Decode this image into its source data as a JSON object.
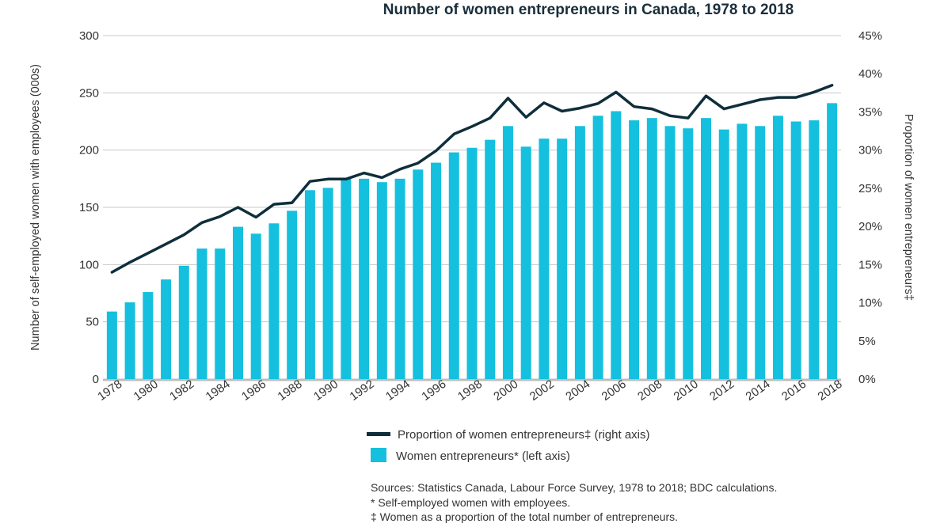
{
  "chart_data": {
    "type": "bar",
    "title": "Number of women entrepreneurs in Canada, 1978 to 2018",
    "ylabel": "Number of self-employed women with employees (000s)",
    "y2label": "Proportion of women entrepreneurs‡",
    "ylim": [
      0,
      300
    ],
    "y2lim": [
      0,
      45
    ],
    "yticks": [
      "0",
      "50",
      "100",
      "150",
      "200",
      "250",
      "300"
    ],
    "y2ticks": [
      "0%",
      "5%",
      "10%",
      "15%",
      "20%",
      "25%",
      "30%",
      "35%",
      "40%",
      "45%"
    ],
    "grid": true,
    "legend_position": "bottom",
    "categories": [
      "1978",
      "1979",
      "1980",
      "1981",
      "1982",
      "1983",
      "1984",
      "1985",
      "1986",
      "1987",
      "1988",
      "1989",
      "1990",
      "1991",
      "1992",
      "1993",
      "1994",
      "1995",
      "1996",
      "1997",
      "1998",
      "1999",
      "2000",
      "2001",
      "2002",
      "2003",
      "2004",
      "2005",
      "2006",
      "2007",
      "2008",
      "2009",
      "2010",
      "2011",
      "2012",
      "2013",
      "2014",
      "2015",
      "2016",
      "2017",
      "2018"
    ],
    "xtick_labels": [
      "1978",
      "1980",
      "1982",
      "1984",
      "1986",
      "1988",
      "1990",
      "1992",
      "1994",
      "1996",
      "1998",
      "2000",
      "2002",
      "2004",
      "2006",
      "2008",
      "2010",
      "2012",
      "2014",
      "2016",
      "2018"
    ],
    "series": [
      {
        "name": "Women entrepreneurs* (left axis)",
        "type": "bar",
        "axis": "left",
        "color": "#14c0de",
        "values": [
          59,
          67,
          76,
          87,
          99,
          114,
          114,
          133,
          127,
          136,
          147,
          165,
          167,
          175,
          175,
          172,
          175,
          183,
          189,
          198,
          202,
          209,
          221,
          203,
          210,
          210,
          221,
          230,
          234,
          226,
          228,
          221,
          219,
          228,
          218,
          223,
          221,
          230,
          225,
          226,
          241
        ]
      },
      {
        "name": "Proportion of women entrepreneurs‡ (right axis)",
        "type": "line",
        "axis": "right",
        "color": "#0f2e3b",
        "values": [
          14.0,
          15.3,
          16.5,
          17.7,
          18.9,
          20.5,
          21.3,
          22.5,
          21.2,
          22.9,
          23.1,
          25.9,
          26.2,
          26.2,
          27.0,
          26.4,
          27.5,
          28.3,
          29.9,
          32.1,
          33.1,
          34.2,
          36.8,
          34.3,
          36.2,
          35.1,
          35.5,
          36.1,
          37.6,
          35.7,
          35.4,
          34.5,
          34.2,
          37.1,
          35.4,
          36.0,
          36.6,
          36.9,
          36.9,
          37.6,
          38.5
        ]
      }
    ],
    "notes": [
      "Sources: Statistics Canada, Labour Force Survey, 1978 to 2018; BDC calculations.",
      "* Self-employed women with employees.",
      "‡ Women as a proportion of the total number of entrepreneurs."
    ]
  }
}
